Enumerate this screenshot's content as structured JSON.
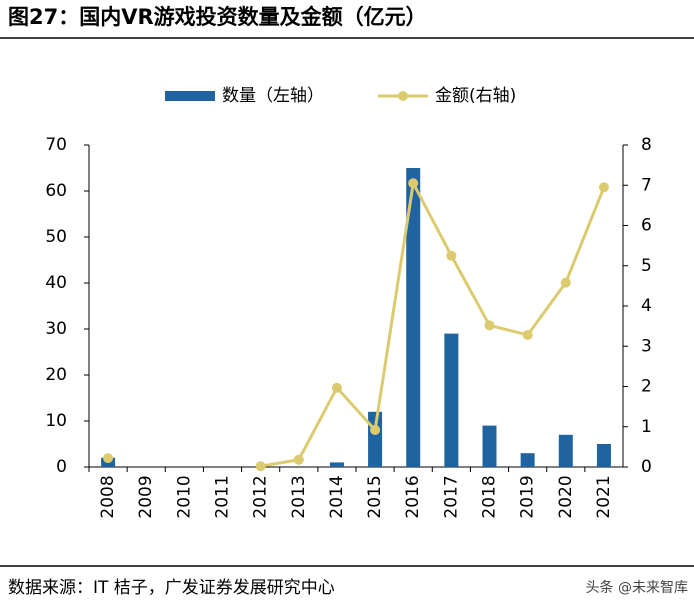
{
  "chart_data": {
    "type": "bar-line",
    "title": "图27：国内VR游戏投资数量及金额（亿元）",
    "source": "数据来源：IT 桔子，广发证券发展研究中心",
    "watermark": "头条 @未来智库",
    "categories": [
      "2008",
      "2009",
      "2010",
      "2011",
      "2012",
      "2013",
      "2014",
      "2015",
      "2016",
      "2017",
      "2018",
      "2019",
      "2020",
      "2021"
    ],
    "series": [
      {
        "name": "数量（左轴）",
        "type": "bar",
        "color": "#1f64a0",
        "axis": "y",
        "values": [
          2,
          0,
          0,
          0,
          0,
          0,
          1,
          12,
          65,
          29,
          9,
          3,
          7,
          5
        ]
      },
      {
        "name": "金额(右轴)",
        "type": "line",
        "color": "#dccb6e",
        "axis": "y2",
        "values": [
          0.22,
          null,
          null,
          null,
          0.02,
          0.18,
          1.97,
          0.92,
          7.05,
          5.25,
          3.52,
          3.28,
          4.58,
          6.95
        ]
      }
    ],
    "ylim": [
      0,
      70
    ],
    "yticks": [
      0,
      10,
      20,
      30,
      40,
      50,
      60,
      70
    ],
    "y2lim": [
      0,
      8
    ],
    "y2ticks": [
      0,
      1,
      2,
      3,
      4,
      5,
      6,
      7,
      8
    ]
  }
}
